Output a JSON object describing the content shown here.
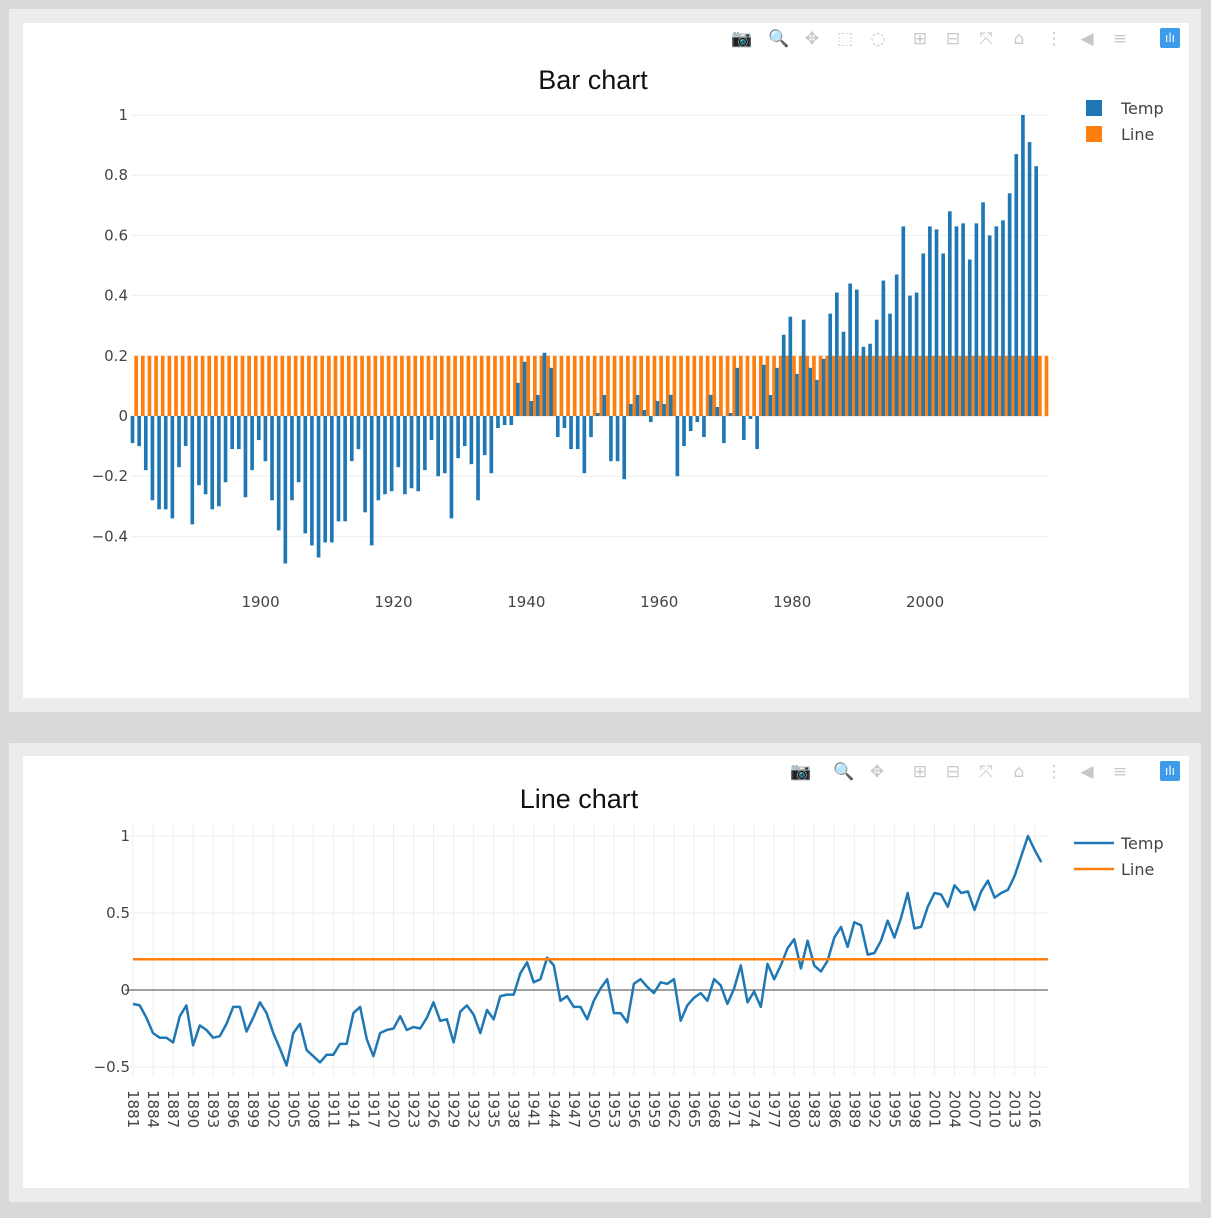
{
  "colors": {
    "temp": "#1f77b4",
    "line": "#ff7f0e",
    "grid": "#eeeeee",
    "zero": "#444444",
    "modebar_icon": "#c8c8c8",
    "modebar_logo": "#3d9be9"
  },
  "modebar_top": {
    "buttons": [
      {
        "name": "camera-icon",
        "glyph": "📷"
      },
      {
        "name": "zoom-icon",
        "glyph": "🔍"
      },
      {
        "name": "pan-icon",
        "glyph": "✥"
      },
      {
        "name": "box-select-icon",
        "glyph": "⬚"
      },
      {
        "name": "lasso-select-icon",
        "glyph": "◌"
      },
      {
        "name": "zoom-in-icon",
        "glyph": "⊞"
      },
      {
        "name": "zoom-out-icon",
        "glyph": "⊟"
      },
      {
        "name": "autoscale-icon",
        "glyph": "⤧"
      },
      {
        "name": "home-icon",
        "glyph": "⌂"
      },
      {
        "name": "spike-lines-icon",
        "glyph": "⋮"
      },
      {
        "name": "hover-closest-icon",
        "glyph": "◀"
      },
      {
        "name": "hover-compare-icon",
        "glyph": "≡"
      },
      {
        "name": "plotly-logo-icon",
        "glyph": "ılı"
      }
    ]
  },
  "modebar_bottom": {
    "buttons": [
      {
        "name": "camera-icon",
        "glyph": "📷"
      },
      {
        "name": "zoom-icon",
        "glyph": "🔍"
      },
      {
        "name": "pan-icon",
        "glyph": "✥"
      },
      {
        "name": "zoom-in-icon",
        "glyph": "⊞"
      },
      {
        "name": "zoom-out-icon",
        "glyph": "⊟"
      },
      {
        "name": "autoscale-icon",
        "glyph": "⤧"
      },
      {
        "name": "home-icon",
        "glyph": "⌂"
      },
      {
        "name": "spike-lines-icon",
        "glyph": "⋮"
      },
      {
        "name": "hover-closest-icon",
        "glyph": "◀"
      },
      {
        "name": "hover-compare-icon",
        "glyph": "≡"
      },
      {
        "name": "plotly-logo-icon",
        "glyph": "ılı"
      }
    ]
  },
  "chart_data": [
    {
      "type": "bar",
      "title": "Bar chart",
      "x_start": 1881,
      "x_end": 2018,
      "xlim": [
        1880.5,
        2018.5
      ],
      "ylim": [
        -0.5,
        1.05
      ],
      "xticks": [
        1900,
        1920,
        1940,
        1960,
        1980,
        2000
      ],
      "xtick_labels": [
        "1900",
        "1920",
        "1940",
        "1960",
        "1980",
        "2000"
      ],
      "yticks": [
        -0.4,
        -0.2,
        0,
        0.2,
        0.4,
        0.6,
        0.8,
        1
      ],
      "ytick_labels": [
        "−0.4",
        "−0.2",
        "0",
        "0.2",
        "0.4",
        "0.6",
        "0.8",
        "1"
      ],
      "legend": {
        "position": "top-right",
        "entries": [
          "Temp",
          "Line"
        ]
      },
      "grid": true,
      "series": [
        {
          "name": "Temp",
          "values": [
            -0.09,
            -0.1,
            -0.18,
            -0.28,
            -0.31,
            -0.31,
            -0.34,
            -0.17,
            -0.1,
            -0.36,
            -0.23,
            -0.26,
            -0.31,
            -0.3,
            -0.22,
            -0.11,
            -0.11,
            -0.27,
            -0.18,
            -0.08,
            -0.15,
            -0.28,
            -0.38,
            -0.49,
            -0.28,
            -0.22,
            -0.39,
            -0.43,
            -0.47,
            -0.42,
            -0.42,
            -0.35,
            -0.35,
            -0.15,
            -0.11,
            -0.32,
            -0.43,
            -0.28,
            -0.26,
            -0.25,
            -0.17,
            -0.26,
            -0.24,
            -0.25,
            -0.18,
            -0.08,
            -0.2,
            -0.19,
            -0.34,
            -0.14,
            -0.1,
            -0.16,
            -0.28,
            -0.13,
            -0.19,
            -0.04,
            -0.03,
            -0.03,
            0.11,
            0.18,
            0.05,
            0.07,
            0.21,
            0.16,
            -0.07,
            -0.04,
            -0.11,
            -0.11,
            -0.19,
            -0.07,
            0.01,
            0.07,
            -0.15,
            -0.15,
            -0.21,
            0.04,
            0.07,
            0.02,
            -0.02,
            0.05,
            0.04,
            0.07,
            -0.2,
            -0.1,
            -0.05,
            -0.02,
            -0.07,
            0.07,
            0.03,
            -0.09,
            0.01,
            0.16,
            -0.08,
            -0.01,
            -0.11,
            0.17,
            0.07,
            0.16,
            0.27,
            0.33,
            0.14,
            0.32,
            0.16,
            0.12,
            0.19,
            0.34,
            0.41,
            0.28,
            0.44,
            0.42,
            0.23,
            0.24,
            0.32,
            0.45,
            0.34,
            0.47,
            0.63,
            0.4,
            0.41,
            0.54,
            0.63,
            0.62,
            0.54,
            0.68,
            0.63,
            0.64,
            0.52,
            0.64,
            0.71,
            0.6,
            0.63,
            0.65,
            0.74,
            0.87,
            1.0,
            0.91,
            0.83
          ]
        },
        {
          "name": "Line",
          "value": 0.2
        }
      ]
    },
    {
      "type": "line",
      "title": "Line chart",
      "x_start": 1881,
      "x_end": 2018,
      "xlim": [
        1881,
        2018
      ],
      "ylim": [
        -0.6,
        1.05
      ],
      "xtick_step": 3,
      "xtick_labels": [
        "1881",
        "1884",
        "1887",
        "1890",
        "1893",
        "1896",
        "1899",
        "1902",
        "1905",
        "1908",
        "1911",
        "1914",
        "1917",
        "1920",
        "1923",
        "1926",
        "1929",
        "1932",
        "1935",
        "1938",
        "1941",
        "1944",
        "1947",
        "1950",
        "1953",
        "1956",
        "1959",
        "1962",
        "1965",
        "1968",
        "1971",
        "1974",
        "1977",
        "1980",
        "1983",
        "1986",
        "1989",
        "1992",
        "1995",
        "1998",
        "2001",
        "2004",
        "2007",
        "2010",
        "2013",
        "2016"
      ],
      "yticks": [
        -0.5,
        0,
        0.5,
        1
      ],
      "ytick_labels": [
        "−0.5",
        "0",
        "0.5",
        "1"
      ],
      "legend": {
        "position": "top-right",
        "entries": [
          "Temp",
          "Line"
        ]
      },
      "grid": true,
      "series": [
        {
          "name": "Temp",
          "same_as": "bar"
        },
        {
          "name": "Line",
          "value": 0.2
        }
      ]
    }
  ]
}
